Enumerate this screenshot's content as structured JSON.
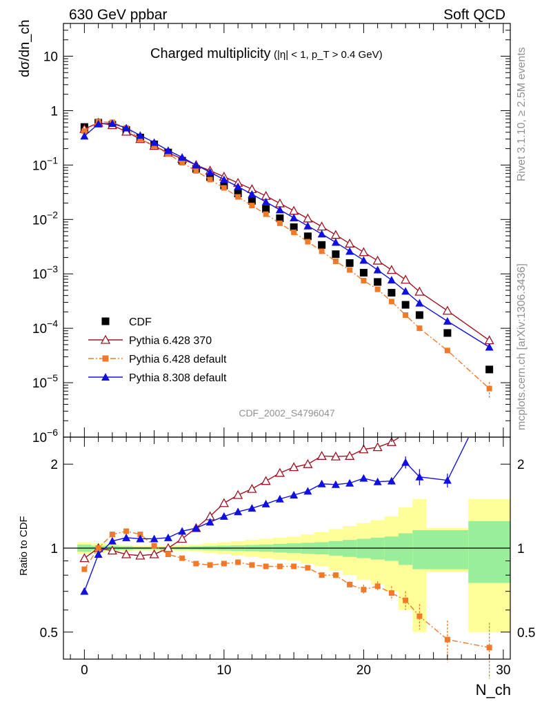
{
  "header": {
    "left_title": "630 GeV ppbar",
    "right_title": "Soft QCD",
    "plot_title_main": "Charged multiplicity",
    "plot_title_cuts": "(|η| < 1, p_T > 0.4 GeV)",
    "analysis_id": "CDF_2002_S4796047",
    "side_label_top": "Rivet 3.1.10, ≥ 2.5M events",
    "side_label_bottom": "mcplots.cern.ch [arXiv:1306.3436]"
  },
  "axes": {
    "y_label": "dσ/dn_ch",
    "ratio_label": "Ratio to CDF",
    "x_label": "N_ch"
  },
  "chart_data": [
    {
      "type": "scatter",
      "panel": "main",
      "y_scale": "log",
      "xlim": [
        -1.5,
        30.5
      ],
      "ylim": [
        1e-06,
        40
      ],
      "x_ticks": [
        0,
        10,
        20,
        30
      ],
      "y_ticks": [
        "10^-6",
        "10^-5",
        "10^-4",
        "10^-3",
        "10^-2",
        "10^-1",
        "1",
        "10"
      ],
      "legend_position": "bottom-left",
      "series": [
        {
          "name": "CDF",
          "color": "#000000",
          "marker": "square",
          "x": [
            0,
            1,
            2,
            3,
            4,
            5,
            6,
            7,
            8,
            9,
            10,
            11,
            12,
            13,
            14,
            15,
            16,
            17,
            18,
            19,
            20,
            21,
            22,
            23,
            24,
            26,
            29
          ],
          "y": [
            0.5,
            0.6,
            0.55,
            0.44,
            0.32,
            0.24,
            0.17,
            0.12,
            0.085,
            0.06,
            0.042,
            0.03,
            0.022,
            0.0155,
            0.0105,
            0.0072,
            0.0049,
            0.0034,
            0.0023,
            0.00158,
            0.00105,
            0.00071,
            0.00045,
            0.00027,
            0.000175,
            8.2e-05,
            1.75e-05
          ]
        },
        {
          "name": "Pythia 6.428 370",
          "color": "#a01020",
          "marker": "open-triangle",
          "line": "solid",
          "x": [
            0,
            1,
            2,
            3,
            4,
            5,
            6,
            7,
            8,
            9,
            10,
            11,
            12,
            13,
            14,
            15,
            16,
            17,
            18,
            19,
            20,
            21,
            22,
            23,
            24,
            26,
            29
          ],
          "y": [
            0.46,
            0.6,
            0.54,
            0.41,
            0.3,
            0.225,
            0.168,
            0.13,
            0.1,
            0.079,
            0.061,
            0.047,
            0.036,
            0.027,
            0.0197,
            0.0144,
            0.0104,
            0.0074,
            0.0052,
            0.0036,
            0.0025,
            0.00175,
            0.00118,
            0.00078,
            0.00047,
            0.00021,
            6e-05
          ]
        },
        {
          "name": "Pythia 6.428 default",
          "color": "#f07a2a",
          "marker": "filled-square-small",
          "line": "dash-dot",
          "x": [
            0,
            1,
            2,
            3,
            4,
            5,
            6,
            7,
            8,
            9,
            10,
            11,
            12,
            13,
            14,
            15,
            16,
            17,
            18,
            19,
            20,
            21,
            22,
            23,
            24,
            26,
            29
          ],
          "y": [
            0.42,
            0.62,
            0.61,
            0.48,
            0.3,
            0.225,
            0.16,
            0.11,
            0.078,
            0.054,
            0.038,
            0.026,
            0.018,
            0.0125,
            0.0085,
            0.0058,
            0.0039,
            0.0026,
            0.0017,
            0.00118,
            0.00075,
            0.00052,
            0.00031,
            0.000175,
            0.0001,
            3.9e-05,
            7.8e-06
          ],
          "y_err": [
            null,
            null,
            null,
            null,
            null,
            null,
            null,
            null,
            null,
            null,
            null,
            null,
            null,
            null,
            null,
            null,
            null,
            null,
            null,
            null,
            null,
            null,
            null,
            null,
            1.2e-05,
            5e-06,
            2.5e-06
          ]
        },
        {
          "name": "Pythia 8.308 default",
          "color": "#1010e0",
          "marker": "filled-triangle",
          "line": "solid",
          "x": [
            0,
            1,
            2,
            3,
            4,
            5,
            6,
            7,
            8,
            9,
            10,
            11,
            12,
            13,
            14,
            15,
            16,
            17,
            18,
            19,
            20,
            21,
            22,
            23,
            24,
            26,
            29
          ],
          "y": [
            0.34,
            0.57,
            0.58,
            0.48,
            0.35,
            0.26,
            0.185,
            0.139,
            0.1,
            0.074,
            0.054,
            0.04,
            0.029,
            0.021,
            0.015,
            0.0107,
            0.0076,
            0.0054,
            0.0038,
            0.0026,
            0.00178,
            0.00118,
            0.00077,
            0.00048,
            0.00029,
            0.000135,
            4.5e-05
          ]
        }
      ]
    },
    {
      "type": "scatter",
      "panel": "ratio",
      "y_scale": "log",
      "xlim": [
        -1.5,
        30.5
      ],
      "ylim": [
        0.4,
        2.5
      ],
      "x_ticks": [
        0,
        10,
        20,
        30
      ],
      "y_ticks": [
        0.5,
        1,
        2
      ],
      "reference_band": {
        "x_edges": [
          -0.5,
          0.5,
          1.5,
          2.5,
          3.5,
          4.5,
          5.5,
          6.5,
          7.5,
          8.5,
          9.5,
          10.5,
          11.5,
          12.5,
          13.5,
          14.5,
          15.5,
          16.5,
          17.5,
          18.5,
          19.5,
          20.5,
          21.5,
          22.5,
          23.5,
          24.5,
          27.5,
          30.5
        ],
        "stat_halfwidth": [
          0.03,
          0.02,
          0.02,
          0.015,
          0.01,
          0.01,
          0.01,
          0.012,
          0.015,
          0.018,
          0.02,
          0.023,
          0.026,
          0.03,
          0.035,
          0.04,
          0.045,
          0.05,
          0.06,
          0.07,
          0.08,
          0.09,
          0.1,
          0.13,
          0.16,
          0.16,
          0.25
        ],
        "total_halfwidth": [
          0.05,
          0.04,
          0.03,
          0.025,
          0.02,
          0.02,
          0.02,
          0.025,
          0.03,
          0.04,
          0.05,
          0.06,
          0.07,
          0.08,
          0.09,
          0.1,
          0.12,
          0.14,
          0.17,
          0.2,
          0.23,
          0.26,
          0.3,
          0.4,
          0.5,
          0.18,
          0.5
        ],
        "stat_color": "#99ee99",
        "total_color": "#ffff99"
      },
      "series": [
        {
          "name": "Pythia 6.428 370",
          "color": "#a01020",
          "marker": "open-triangle",
          "line": "solid",
          "x": [
            0,
            1,
            2,
            3,
            4,
            5,
            6,
            7,
            8,
            9,
            10,
            11,
            12,
            13,
            14,
            15,
            16,
            17,
            18,
            19,
            20,
            21,
            22,
            22.5
          ],
          "y": [
            0.92,
            1.0,
            0.98,
            0.95,
            0.94,
            0.95,
            1.0,
            1.08,
            1.18,
            1.3,
            1.45,
            1.55,
            1.63,
            1.74,
            1.86,
            1.95,
            2.0,
            2.14,
            2.13,
            2.14,
            2.26,
            2.3,
            2.4,
            2.6
          ]
        },
        {
          "name": "Pythia 6.428 default",
          "color": "#f07a2a",
          "marker": "filled-square-small",
          "line": "dash-dot",
          "x": [
            0,
            1,
            2,
            3,
            4,
            5,
            6,
            7,
            8,
            9,
            10,
            11,
            12,
            13,
            14,
            15,
            16,
            17,
            18,
            19,
            20,
            21,
            22,
            23,
            24,
            26,
            29
          ],
          "y": [
            0.84,
            1.0,
            1.12,
            1.15,
            1.12,
            1.02,
            0.95,
            0.92,
            0.88,
            0.87,
            0.88,
            0.89,
            0.87,
            0.86,
            0.86,
            0.86,
            0.85,
            0.8,
            0.8,
            0.74,
            0.71,
            0.73,
            0.69,
            0.65,
            0.57,
            0.47,
            0.44
          ],
          "y_err": [
            0,
            0,
            0,
            0,
            0,
            0,
            0,
            0,
            0,
            0,
            0,
            0,
            0,
            0,
            0.01,
            0.01,
            0.01,
            0.015,
            0.02,
            0.02,
            0.03,
            0.03,
            0.04,
            0.05,
            0.06,
            0.08,
            0.1
          ]
        },
        {
          "name": "Pythia 8.308 default",
          "color": "#1010e0",
          "marker": "filled-triangle",
          "line": "solid",
          "x": [
            0,
            1,
            2,
            3,
            4,
            5,
            6,
            7,
            8,
            9,
            10,
            11,
            12,
            13,
            14,
            15,
            16,
            17,
            18,
            19,
            20,
            21,
            22,
            23,
            24,
            26,
            27.5
          ],
          "y": [
            0.7,
            0.95,
            1.06,
            1.09,
            1.08,
            1.08,
            1.09,
            1.15,
            1.18,
            1.24,
            1.3,
            1.35,
            1.39,
            1.44,
            1.5,
            1.55,
            1.6,
            1.7,
            1.69,
            1.71,
            1.78,
            1.73,
            1.74,
            2.03,
            1.8,
            1.75,
            2.55
          ],
          "y_err": [
            0,
            0,
            0,
            0,
            0,
            0,
            0,
            0,
            0,
            0,
            0,
            0,
            0,
            0,
            0,
            0,
            0,
            0,
            0,
            0.02,
            0.03,
            0.04,
            0.05,
            0.1,
            0.12,
            0.1,
            0
          ]
        }
      ]
    }
  ]
}
